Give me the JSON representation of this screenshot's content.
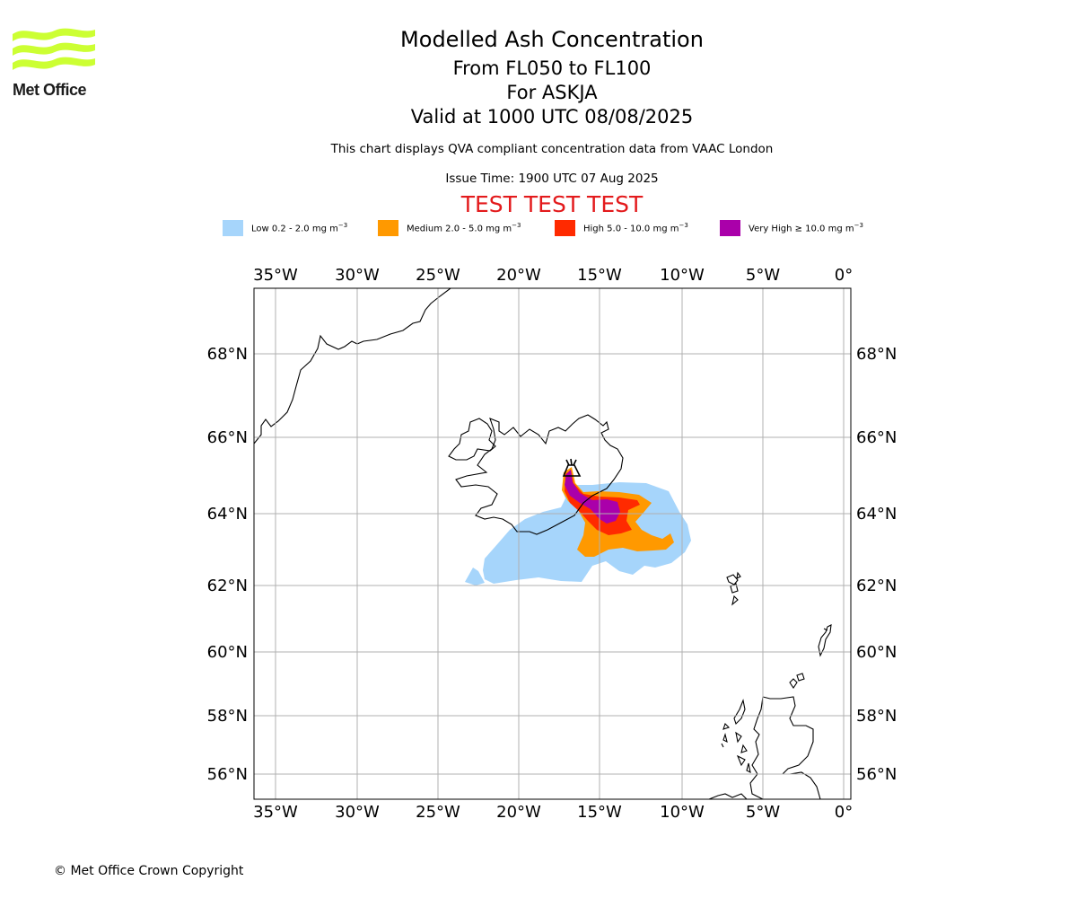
{
  "header": {
    "logo_text": "Met Office",
    "title": "Modelled Ash Concentration",
    "levels": "From FL050 to FL100",
    "volcano": "For ASKJA",
    "valid": "Valid at 1000 UTC 08/08/2025",
    "compliance": "This chart displays QVA compliant concentration data from VAAC London",
    "issue_time": "Issue Time: 1900 UTC 07 Aug 2025",
    "test_banner": "TEST TEST TEST"
  },
  "legend": [
    {
      "label": "Low 0.2 - 2.0 mg m",
      "exp": "−3",
      "color": "#a6d5fb"
    },
    {
      "label": "Medium 2.0 - 5.0 mg m",
      "exp": "−3",
      "color": "#ff9900"
    },
    {
      "label": "High 5.0 - 10.0 mg m",
      "exp": "−3",
      "color": "#ff2a00"
    },
    {
      "label": "Very High  ≥  10.0 mg m",
      "exp": "−3",
      "color": "#aa00aa"
    }
  ],
  "map": {
    "lon_ticks": [
      "35°W",
      "30°W",
      "25°W",
      "20°W",
      "15°W",
      "10°W",
      "5°W",
      "0°"
    ],
    "lat_ticks": [
      "68°N",
      "66°N",
      "64°N",
      "62°N",
      "60°N",
      "58°N",
      "56°N"
    ],
    "volcano_symbol": "volcano-icon"
  },
  "footer": {
    "copyright": "© Met Office Crown Copyright"
  }
}
